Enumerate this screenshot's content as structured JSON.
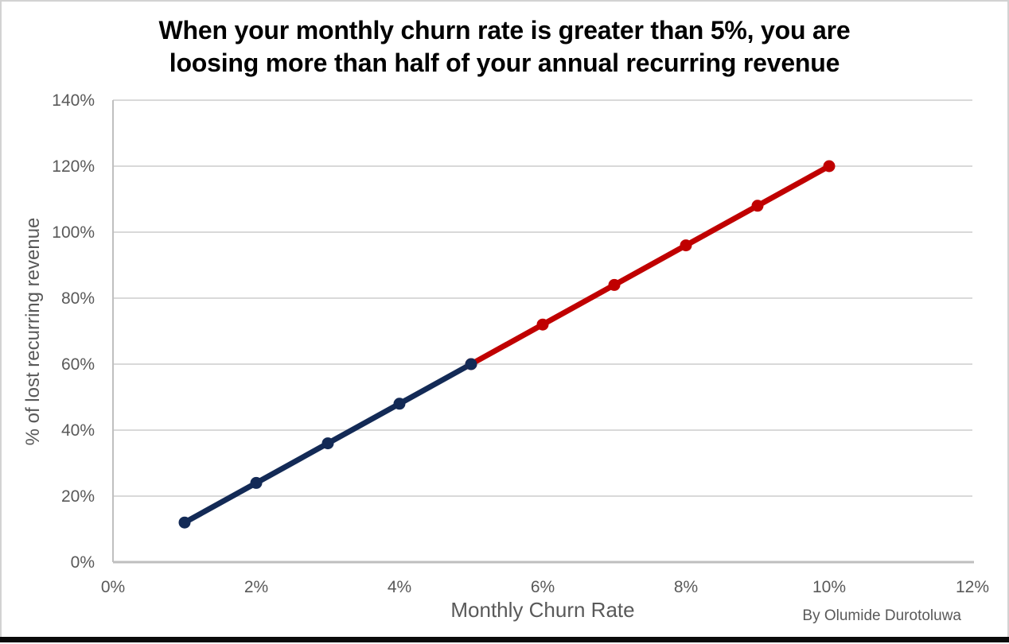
{
  "window": {
    "attribution": "By Olumide Durotoluwa"
  },
  "chart_data": {
    "type": "line",
    "title": "When your monthly churn rate is greater than 5%, you are loosing more than half of your annual recurring revenue",
    "title_lines": [
      "When your monthly churn rate is greater than 5%, you are",
      "loosing more than half of your annual recurring revenue"
    ],
    "xlabel": "Monthly Churn Rate",
    "ylabel": "% of lost recurring revenue",
    "xlim": [
      0,
      12
    ],
    "ylim": [
      0,
      140
    ],
    "x_tick_values": [
      0,
      2,
      4,
      6,
      8,
      10,
      12
    ],
    "x_tick_labels": [
      "0%",
      "2%",
      "4%",
      "6%",
      "8%",
      "10%",
      "12%"
    ],
    "y_tick_values": [
      0,
      20,
      40,
      60,
      80,
      100,
      120,
      140
    ],
    "y_tick_labels": [
      "0%",
      "20%",
      "40%",
      "60%",
      "80%",
      "100%",
      "120%",
      "140%"
    ],
    "grid": "horizontal-only",
    "legend_position": "none",
    "colors": {
      "gridline": "#D9D9D9",
      "axis_line": "#BFBFBF",
      "tick_label": "#595959",
      "title": "#000000",
      "segment_low": "#132A56",
      "segment_high": "#C00000"
    },
    "series": [
      {
        "name": "churn-1-to-5-percent",
        "color": "#132A56",
        "marker": "circle",
        "x": [
          1,
          2,
          3,
          4,
          5
        ],
        "y": [
          12,
          24,
          36,
          48,
          60
        ]
      },
      {
        "name": "churn-5-to-10-percent",
        "color": "#C00000",
        "marker": "circle",
        "x": [
          5,
          6,
          7,
          8,
          9,
          10
        ],
        "y": [
          60,
          72,
          84,
          96,
          108,
          120
        ]
      }
    ]
  }
}
